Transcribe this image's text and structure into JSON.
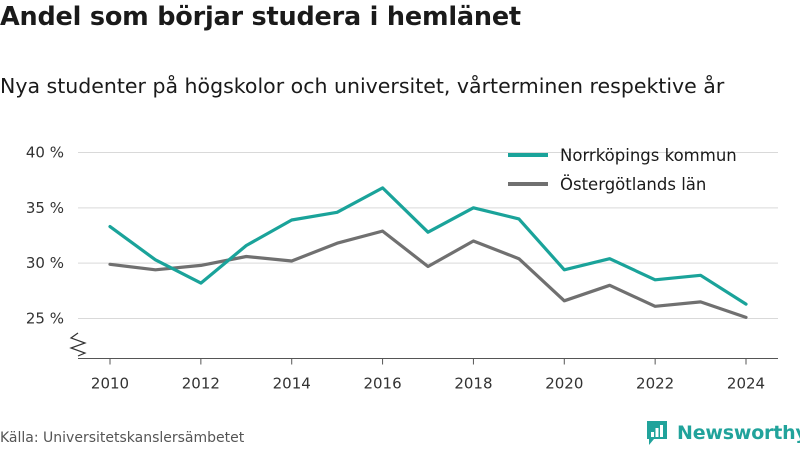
{
  "header": {
    "title": "Andel som börjar studera i hemlänet",
    "subtitle": "Nya studenter på högskolor och universitet, vårterminen respektive år"
  },
  "footer": {
    "source": "Källa: Universitetskanslersämbetet",
    "brand_name": "Newsworthy",
    "brand_color": "#21a39b",
    "brand_icon": "newsworthy-logo-icon"
  },
  "chart_data": {
    "type": "line",
    "title": "Andel som börjar studera i hemlänet",
    "subtitle": "Nya studenter på högskolor och universitet, vårterminen respektive år",
    "xlabel": "",
    "ylabel": "",
    "x": [
      2010,
      2011,
      2012,
      2013,
      2014,
      2015,
      2016,
      2017,
      2018,
      2019,
      2020,
      2021,
      2022,
      2023,
      2024
    ],
    "x_ticks": [
      "2010",
      "2012",
      "2014",
      "2016",
      "2018",
      "2020",
      "2022",
      "2024"
    ],
    "y_ticks": [
      "25 %",
      "30 %",
      "35 %",
      "40 %"
    ],
    "ylim": [
      25,
      40
    ],
    "y_axis_break": true,
    "grid": true,
    "legend_position": "top-right",
    "series": [
      {
        "name": "Norrköpings kommun",
        "color": "#1aa39a",
        "values": [
          33.3,
          30.3,
          28.2,
          31.6,
          33.9,
          34.6,
          36.8,
          32.8,
          35.0,
          34.0,
          29.4,
          30.4,
          28.5,
          28.9,
          26.3
        ]
      },
      {
        "name": "Östergötlands län",
        "color": "#707070",
        "values": [
          29.9,
          29.4,
          29.8,
          30.6,
          30.2,
          31.8,
          32.9,
          29.7,
          32.0,
          30.4,
          26.6,
          28.0,
          26.1,
          26.5,
          25.1
        ]
      }
    ]
  }
}
